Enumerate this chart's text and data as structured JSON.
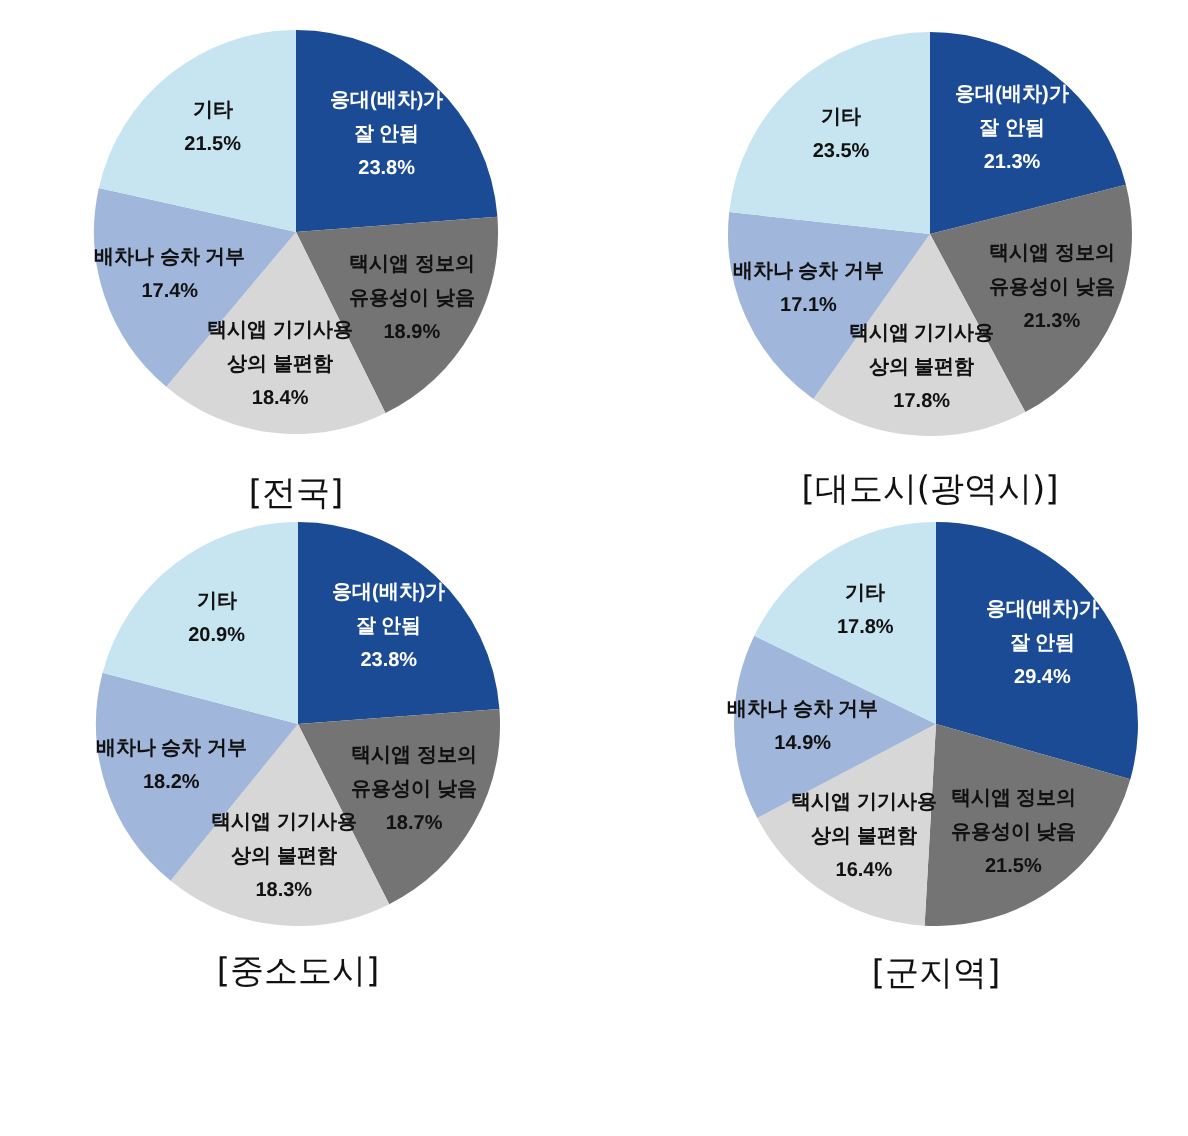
{
  "chart_data": [
    {
      "type": "pie",
      "title": "[전국]",
      "categories": [
        "응대(배차)가\n잘 안됨",
        "택시앱 정보의\n유용성이 낮음",
        "택시앱 기기사용\n상의 불편함",
        "배차나 승차 거부",
        "기타"
      ],
      "values": [
        23.8,
        18.9,
        18.4,
        17.4,
        21.5
      ],
      "value_labels": [
        "23.8%",
        "18.9%",
        "18.4%",
        "17.4%",
        "21.5%"
      ],
      "colors": [
        "#1b4b95",
        "#747474",
        "#d7d7d7",
        "#a0b6da",
        "#c7e5f0"
      ]
    },
    {
      "type": "pie",
      "title": "[대도시(광역시)]",
      "categories": [
        "응대(배차)가\n잘 안됨",
        "택시앱 정보의\n유용성이 낮음",
        "택시앱 기기사용\n상의 불편함",
        "배차나 승차 거부",
        "기타"
      ],
      "values": [
        21.3,
        21.3,
        17.8,
        17.1,
        23.5
      ],
      "value_labels": [
        "21.3%",
        "21.3%",
        "17.8%",
        "17.1%",
        "23.5%"
      ],
      "colors": [
        "#1b4b95",
        "#747474",
        "#d7d7d7",
        "#a0b6da",
        "#c7e5f0"
      ]
    },
    {
      "type": "pie",
      "title": "[중소도시]",
      "categories": [
        "응대(배차)가\n잘 안됨",
        "택시앱 정보의\n유용성이 낮음",
        "택시앱 기기사용\n상의 불편함",
        "배차나 승차 거부",
        "기타"
      ],
      "values": [
        23.8,
        18.7,
        18.3,
        18.2,
        20.9
      ],
      "value_labels": [
        "23.8%",
        "18.7%",
        "18.3%",
        "18.2%",
        "20.9%"
      ],
      "colors": [
        "#1b4b95",
        "#747474",
        "#d7d7d7",
        "#a0b6da",
        "#c7e5f0"
      ]
    },
    {
      "type": "pie",
      "title": "[군지역]",
      "categories": [
        "응대(배차)가\n잘 안됨",
        "택시앱 정보의\n유용성이 낮음",
        "택시앱 기기사용\n상의 불편함",
        "배차나 승차 거부",
        "기타"
      ],
      "values": [
        29.4,
        21.5,
        16.4,
        14.9,
        17.8
      ],
      "value_labels": [
        "29.4%",
        "21.5%",
        "16.4%",
        "14.9%",
        "17.8%"
      ],
      "colors": [
        "#1b4b95",
        "#747474",
        "#d7d7d7",
        "#a0b6da",
        "#c7e5f0"
      ]
    }
  ]
}
